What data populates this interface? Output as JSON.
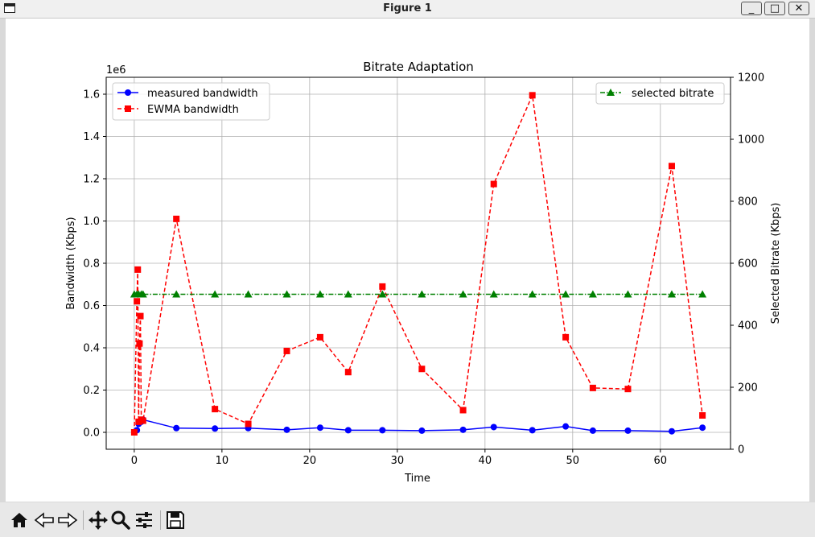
{
  "window": {
    "title": "Figure 1",
    "min_label": "_",
    "max_label": "□",
    "close_label": "✕"
  },
  "toolbar": {
    "buttons": [
      "home-icon",
      "back-icon",
      "forward-icon",
      "pan-icon",
      "zoom-icon",
      "configure-subplots-icon",
      "save-icon"
    ]
  },
  "chart_data": {
    "type": "line",
    "title": "Bitrate Adaptation",
    "xlabel": "Time",
    "ylabel": "Bandwidth (Kbps)",
    "y2label": "Selected Bitrate (Kbps)",
    "y_offset_label": "1e6",
    "xlim": [
      -3.2,
      68.0
    ],
    "ylim": [
      -80000,
      1680000
    ],
    "y2lim": [
      0,
      1200
    ],
    "xticks": [
      0,
      10,
      20,
      30,
      40,
      50,
      60
    ],
    "xtick_labels": [
      "0",
      "10",
      "20",
      "30",
      "40",
      "50",
      "60"
    ],
    "yticks": [
      0,
      200000,
      400000,
      600000,
      800000,
      1000000,
      1200000,
      1400000,
      1600000
    ],
    "ytick_labels": [
      "0.0",
      "0.2",
      "0.4",
      "0.6",
      "0.8",
      "1.0",
      "1.2",
      "1.4",
      "1.6"
    ],
    "y2ticks": [
      0,
      200,
      400,
      600,
      800,
      1000,
      1200
    ],
    "y2tick_labels": [
      "0",
      "200",
      "400",
      "600",
      "800",
      "1000",
      "1200"
    ],
    "grid": true,
    "legend_left_placement": "upper-left",
    "legend_right_placement": "upper-right",
    "series": [
      {
        "name": "measured bandwidth",
        "axis": "left",
        "color": "#0000ff",
        "marker": "circle",
        "linestyle": "solid",
        "x": [
          0.3,
          0.5,
          0.8,
          1.0,
          4.8,
          9.2,
          13.0,
          17.4,
          21.2,
          24.4,
          28.3,
          32.8,
          37.5,
          41.0,
          45.4,
          49.2,
          52.3,
          56.3,
          61.3,
          64.8
        ],
        "y": [
          10000,
          40000,
          50000,
          60000,
          20000,
          18000,
          20000,
          12000,
          22000,
          10000,
          10000,
          8000,
          12000,
          25000,
          10000,
          28000,
          8000,
          8000,
          5000,
          22000
        ]
      },
      {
        "name": "EWMA bandwidth",
        "axis": "left",
        "color": "#ff0000",
        "marker": "square",
        "linestyle": "dashed",
        "x": [
          0.0,
          0.3,
          0.4,
          0.5,
          0.6,
          0.7,
          0.8,
          1.0,
          4.8,
          9.2,
          13.0,
          17.4,
          21.2,
          24.4,
          28.3,
          32.8,
          37.5,
          41.0,
          45.4,
          49.2,
          52.3,
          56.3,
          61.3,
          64.8
        ],
        "y": [
          0,
          620000,
          770000,
          50000,
          420000,
          550000,
          60000,
          55000,
          1010000,
          110000,
          40000,
          385000,
          450000,
          285000,
          690000,
          300000,
          105000,
          1175000,
          1595000,
          450000,
          210000,
          205000,
          1260000,
          80000
        ]
      },
      {
        "name": "selected bitrate",
        "axis": "right",
        "color": "#008000",
        "marker": "triangle",
        "linestyle": "dashdot",
        "x": [
          0.0,
          0.3,
          0.5,
          0.8,
          1.0,
          4.8,
          9.2,
          13.0,
          17.4,
          21.2,
          24.4,
          28.3,
          32.8,
          37.5,
          41.0,
          45.4,
          49.2,
          52.3,
          56.3,
          61.3,
          64.8
        ],
        "y": [
          500,
          500,
          500,
          500,
          500,
          500,
          500,
          500,
          500,
          500,
          500,
          500,
          500,
          500,
          500,
          500,
          500,
          500,
          500,
          500,
          500
        ]
      }
    ]
  }
}
